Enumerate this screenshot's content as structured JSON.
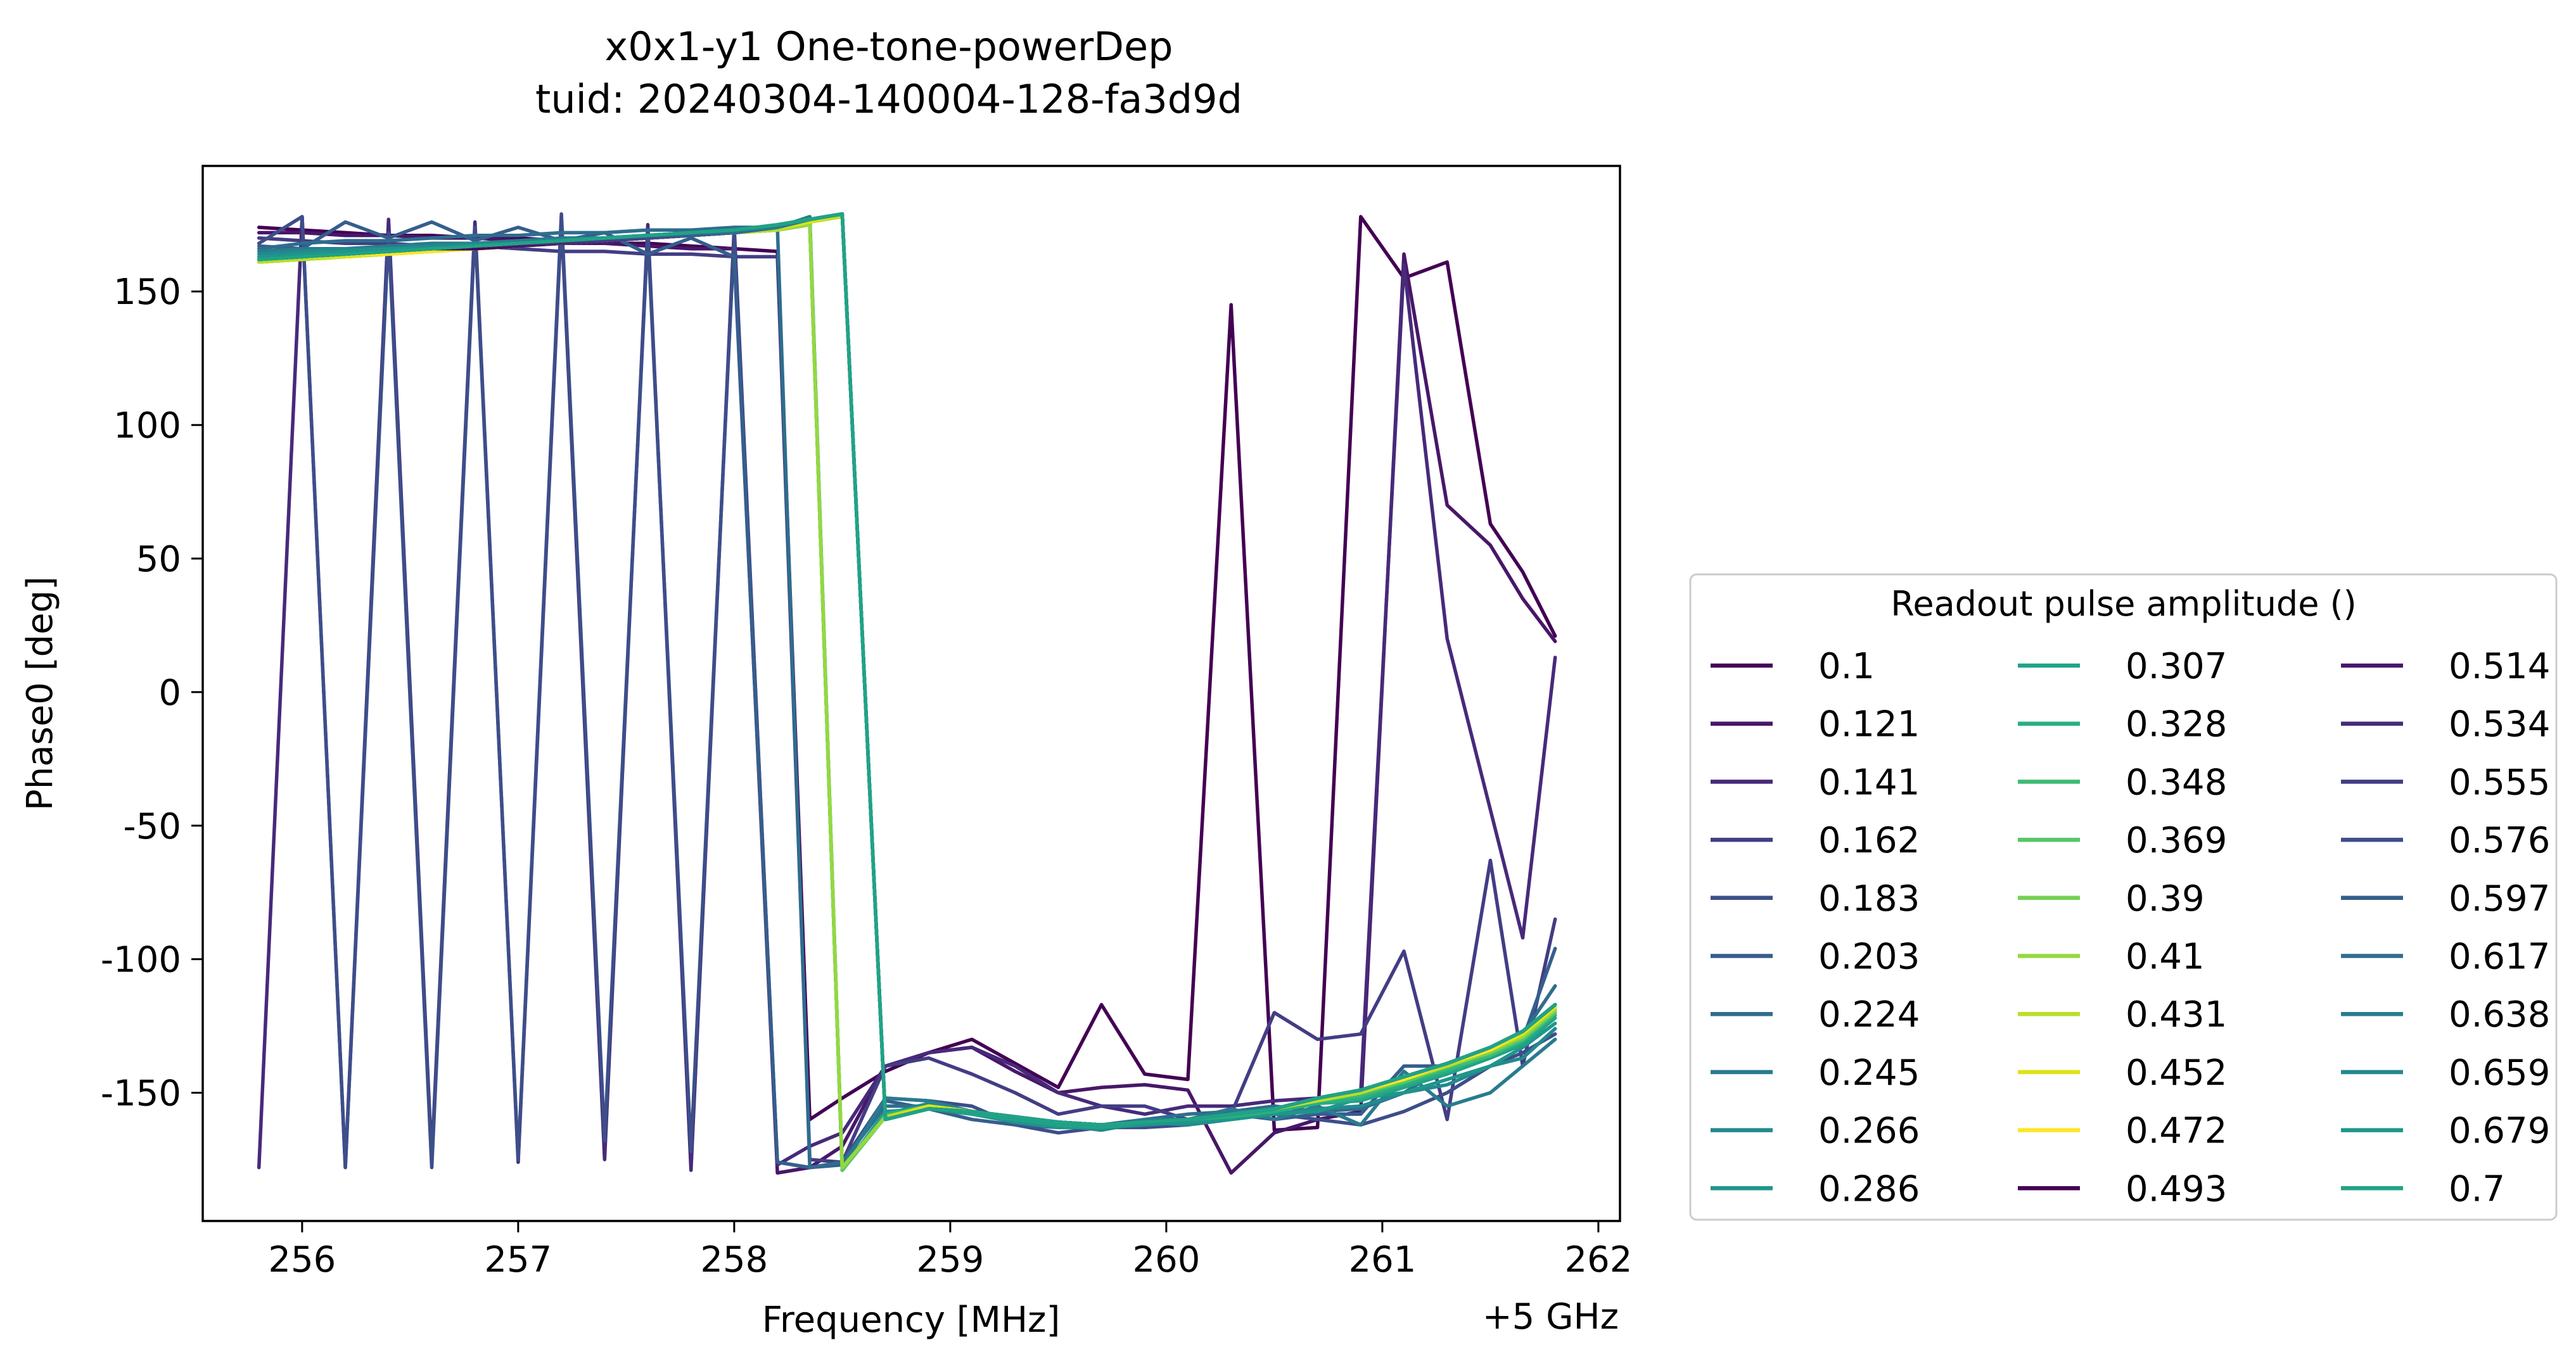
{
  "chart_data": {
    "type": "line",
    "title_line1": "x0x1-y1 One-tone-powerDep",
    "title_line2": "tuid: 20240304-140004-128-fa3d9d",
    "xlabel": "Frequency [MHz]",
    "ylabel": "Phase0 [deg]",
    "x_offset_label": "+5 GHz",
    "xlim": [
      255.54,
      262.1
    ],
    "ylim": [
      -198,
      197
    ],
    "xticks": [
      256,
      257,
      258,
      259,
      260,
      261,
      262
    ],
    "yticks": [
      150,
      100,
      50,
      0,
      -50,
      -100,
      -150
    ],
    "ytick_labels": [
      "150",
      "100",
      "50",
      "0",
      "-50",
      "-100",
      "-150"
    ],
    "grid": false,
    "legend": {
      "title": "Readout pulse amplitude ()",
      "placement": "right",
      "columns": 3
    },
    "x": [
      255.8,
      256.0,
      256.2,
      256.4,
      256.6,
      256.8,
      257.0,
      257.2,
      257.4,
      257.6,
      257.8,
      258.0,
      258.2,
      258.35,
      258.5,
      258.7,
      258.9,
      259.1,
      259.3,
      259.5,
      259.7,
      259.9,
      260.1,
      260.3,
      260.5,
      260.7,
      260.9,
      261.1,
      261.3,
      261.5,
      261.65,
      261.8
    ],
    "series": [
      {
        "name": "0.1",
        "color": "#440154",
        "values": [
          174,
          173,
          172,
          171,
          171,
          170,
          170,
          169,
          168,
          168,
          167,
          166,
          165,
          -160,
          -152,
          -142,
          -135,
          -130,
          -139,
          -148,
          -117,
          -143,
          -145,
          145,
          -164,
          -163,
          178,
          155,
          161,
          63,
          45,
          21
        ]
      },
      {
        "name": "0.121",
        "color": "#481769",
        "values": [
          172,
          172,
          171,
          171,
          170,
          170,
          169,
          168,
          168,
          167,
          166,
          166,
          -180,
          -178,
          -170,
          -140,
          -135,
          -133,
          -142,
          -150,
          -148,
          -147,
          -149,
          -180,
          -165,
          -160,
          -157,
          164,
          70,
          55,
          35,
          19
        ]
      },
      {
        "name": "0.141",
        "color": "#472a7a",
        "values": [
          -178,
          178,
          -178,
          177,
          -175,
          176,
          -176,
          177,
          -175,
          175,
          -179,
          174,
          -177,
          -170,
          -165,
          -140,
          -135,
          -133,
          -140,
          -150,
          -155,
          -158,
          -155,
          -155,
          -153,
          -152,
          -150,
          160,
          20,
          -44,
          -92,
          13
        ]
      },
      {
        "name": "0.162",
        "color": "#433d84",
        "values": [
          170,
          169,
          168,
          168,
          167,
          167,
          166,
          165,
          165,
          164,
          164,
          163,
          163,
          -175,
          -176,
          -140,
          -137,
          -143,
          -150,
          -158,
          -155,
          -155,
          -160,
          -158,
          -120,
          -130,
          -128,
          -97,
          -160,
          -63,
          -140,
          -85
        ]
      },
      {
        "name": "0.183",
        "color": "#3d4e8a",
        "values": [
          168,
          178,
          -178,
          172,
          -178,
          174,
          -175,
          179,
          -168,
          172,
          -172,
          171,
          -176,
          -178,
          -176,
          -152,
          -153,
          -155,
          -162,
          -165,
          -163,
          -163,
          -162,
          -160,
          -158,
          -160,
          -162,
          -157,
          -150,
          -140,
          -135,
          -128
        ]
      },
      {
        "name": "0.203",
        "color": "#355e8d",
        "values": [
          167,
          166,
          176,
          170,
          176,
          169,
          174,
          169,
          172,
          164,
          170,
          163,
          -176,
          -178,
          -177,
          -153,
          -156,
          -160,
          -162,
          -163,
          -163,
          -162,
          -160,
          -158,
          -160,
          -158,
          -158,
          -140,
          -140,
          -135,
          -130,
          -96
        ]
      },
      {
        "name": "0.224",
        "color": "#2e6d8e",
        "values": [
          166,
          168,
          169,
          169,
          170,
          171,
          171,
          172,
          172,
          173,
          173,
          174,
          174,
          -178,
          -176,
          -155,
          -155,
          -158,
          -160,
          -162,
          -162,
          -160,
          -158,
          -157,
          -155,
          -157,
          -156,
          -150,
          -140,
          -133,
          -128,
          -110
        ]
      },
      {
        "name": "0.245",
        "color": "#297b8e",
        "values": [
          165,
          166,
          166,
          167,
          168,
          168,
          169,
          170,
          170,
          171,
          172,
          173,
          174,
          178,
          -178,
          -152,
          -153,
          -157,
          -160,
          -162,
          -163,
          -160,
          -160,
          -156,
          -160,
          -155,
          -162,
          -142,
          -155,
          -150,
          -140,
          -130
        ]
      },
      {
        "name": "0.266",
        "color": "#23898e",
        "values": [
          164,
          165,
          166,
          166,
          167,
          168,
          168,
          169,
          170,
          171,
          172,
          173,
          174,
          176,
          -179,
          -158,
          -154,
          -157,
          -161,
          -162,
          -164,
          -161,
          -162,
          -160,
          -158,
          -156,
          -155,
          -150,
          -147,
          -140,
          -137,
          -126
        ]
      },
      {
        "name": "0.286",
        "color": "#1f968b",
        "values": [
          163,
          164,
          165,
          166,
          166,
          167,
          168,
          169,
          169,
          170,
          171,
          172,
          173,
          175,
          -179,
          -157,
          -156,
          -158,
          -161,
          -163,
          -163,
          -162,
          -161,
          -160,
          -158,
          -157,
          -152,
          -150,
          -145,
          -140,
          -133,
          -124
        ]
      },
      {
        "name": "0.307",
        "color": "#20a386",
        "values": [
          162,
          163,
          164,
          165,
          166,
          167,
          168,
          168,
          169,
          170,
          171,
          172,
          173,
          175,
          -179,
          -158,
          -155,
          -158,
          -160,
          -162,
          -163,
          -161,
          -160,
          -158,
          -157,
          -154,
          -153,
          -148,
          -143,
          -137,
          -132,
          -122
        ]
      },
      {
        "name": "0.328",
        "color": "#29af7f",
        "values": [
          162,
          163,
          164,
          165,
          166,
          167,
          167,
          168,
          169,
          170,
          171,
          172,
          173,
          175,
          -179,
          -158,
          -155,
          -157,
          -159,
          -161,
          -162,
          -161,
          -160,
          -159,
          -157,
          -154,
          -152,
          -147,
          -142,
          -136,
          -131,
          -121
        ]
      },
      {
        "name": "0.348",
        "color": "#3dbc74",
        "values": [
          161,
          162,
          163,
          164,
          165,
          166,
          167,
          168,
          169,
          170,
          171,
          172,
          173,
          175,
          -179,
          -159,
          -155,
          -157,
          -159,
          -161,
          -162,
          -161,
          -160,
          -158,
          -156,
          -153,
          -151,
          -146,
          -141,
          -136,
          -130,
          -120
        ]
      },
      {
        "name": "0.369",
        "color": "#56c667",
        "values": [
          161,
          162,
          163,
          164,
          165,
          166,
          167,
          168,
          169,
          170,
          171,
          172,
          173,
          175,
          -179,
          -159,
          -155,
          -157,
          -159,
          -161,
          -162,
          -161,
          -160,
          -158,
          -156,
          -153,
          -150,
          -146,
          -140,
          -135,
          -130,
          -120
        ]
      },
      {
        "name": "0.39",
        "color": "#75d054",
        "values": [
          161,
          162,
          163,
          164,
          165,
          166,
          167,
          168,
          169,
          170,
          171,
          172,
          173,
          175,
          -178,
          -159,
          -155,
          -157,
          -159,
          -161,
          -162,
          -161,
          -160,
          -158,
          -156,
          -153,
          -150,
          -145,
          -140,
          -135,
          -129,
          -119
        ]
      },
      {
        "name": "0.41",
        "color": "#95d840",
        "values": [
          161,
          162,
          163,
          164,
          165,
          166,
          167,
          168,
          169,
          170,
          171,
          172,
          173,
          175,
          -178,
          -159,
          -155,
          -157,
          -159,
          -161,
          -162,
          -161,
          -160,
          -158,
          -156,
          -153,
          -150,
          -145,
          -140,
          -134,
          -129,
          -119
        ]
      },
      {
        "name": "0.431",
        "color": "#bade28",
        "values": [
          161,
          162,
          163,
          164,
          165,
          166,
          167,
          168,
          169,
          170,
          171,
          172,
          173,
          176,
          178,
          -159,
          -155,
          -157,
          -159,
          -161,
          -162,
          -161,
          -160,
          -158,
          -156,
          -153,
          -150,
          -145,
          -140,
          -134,
          -128,
          -118
        ]
      },
      {
        "name": "0.452",
        "color": "#dde318",
        "values": [
          162,
          163,
          163,
          164,
          165,
          166,
          167,
          168,
          169,
          170,
          171,
          172,
          174,
          176,
          179,
          -160,
          -155,
          -157,
          -159,
          -161,
          -162,
          -161,
          -160,
          -158,
          -156,
          -152,
          -149,
          -145,
          -139,
          -134,
          -128,
          -118
        ]
      },
      {
        "name": "0.472",
        "color": "#fde725",
        "values": [
          162,
          163,
          164,
          164,
          165,
          166,
          167,
          168,
          169,
          170,
          171,
          172,
          174,
          177,
          179,
          -160,
          -156,
          -157,
          -159,
          -161,
          -162,
          -161,
          -160,
          -158,
          -156,
          -152,
          -149,
          -145,
          -139,
          -134,
          -127,
          -117
        ]
      },
      {
        "name": "0.493",
        "color": "#440154",
        "values": [
          162,
          163,
          164,
          165,
          166,
          166,
          167,
          168,
          169,
          170,
          171,
          172,
          174,
          177,
          179,
          -160,
          -156,
          -157,
          -159,
          -161,
          -162,
          -161,
          -160,
          -158,
          -156,
          -152,
          -149,
          -144,
          -139,
          -133,
          -127,
          -117
        ]
      },
      {
        "name": "0.514",
        "color": "#481769",
        "values": [
          162,
          163,
          164,
          165,
          166,
          167,
          167,
          168,
          169,
          170,
          171,
          172,
          174,
          177,
          179,
          -160,
          -156,
          -157,
          -159,
          -161,
          -162,
          -161,
          -160,
          -158,
          -156,
          -152,
          -149,
          -144,
          -139,
          -133,
          -127,
          -117
        ]
      },
      {
        "name": "0.534",
        "color": "#472a7a",
        "values": [
          162,
          163,
          164,
          165,
          166,
          167,
          168,
          168,
          169,
          170,
          171,
          172,
          174,
          177,
          179,
          -160,
          -156,
          -157,
          -159,
          -161,
          -162,
          -161,
          -160,
          -158,
          -156,
          -152,
          -149,
          -144,
          -139,
          -133,
          -127,
          -117
        ]
      },
      {
        "name": "0.555",
        "color": "#433d84",
        "values": [
          162,
          163,
          164,
          165,
          166,
          167,
          168,
          169,
          169,
          170,
          171,
          172,
          174,
          177,
          179,
          -160,
          -156,
          -157,
          -159,
          -161,
          -162,
          -161,
          -160,
          -158,
          -156,
          -152,
          -149,
          -144,
          -139,
          -133,
          -127,
          -117
        ]
      },
      {
        "name": "0.576",
        "color": "#3d4e8a",
        "values": [
          162,
          163,
          164,
          165,
          166,
          167,
          168,
          169,
          170,
          170,
          171,
          172,
          174,
          177,
          179,
          -160,
          -156,
          -157,
          -159,
          -161,
          -162,
          -161,
          -160,
          -158,
          -156,
          -152,
          -149,
          -144,
          -139,
          -133,
          -127,
          -117
        ]
      },
      {
        "name": "0.597",
        "color": "#355e8d",
        "values": [
          162,
          163,
          164,
          165,
          166,
          167,
          168,
          169,
          170,
          171,
          171,
          172,
          174,
          177,
          179,
          -160,
          -156,
          -157,
          -159,
          -161,
          -162,
          -161,
          -160,
          -158,
          -156,
          -152,
          -149,
          -144,
          -139,
          -133,
          -127,
          -117
        ]
      },
      {
        "name": "0.617",
        "color": "#2e6d8e",
        "values": [
          162,
          163,
          164,
          165,
          166,
          167,
          168,
          169,
          170,
          171,
          172,
          172,
          174,
          177,
          179,
          -160,
          -156,
          -157,
          -159,
          -161,
          -162,
          -161,
          -160,
          -158,
          -156,
          -152,
          -149,
          -144,
          -139,
          -133,
          -127,
          -117
        ]
      },
      {
        "name": "0.638",
        "color": "#297b8e",
        "values": [
          162,
          163,
          164,
          165,
          166,
          167,
          168,
          169,
          170,
          171,
          172,
          173,
          174,
          177,
          179,
          -160,
          -156,
          -157,
          -159,
          -161,
          -162,
          -161,
          -160,
          -158,
          -156,
          -152,
          -149,
          -144,
          -139,
          -133,
          -127,
          -117
        ]
      },
      {
        "name": "0.659",
        "color": "#23898e",
        "values": [
          162,
          163,
          164,
          165,
          166,
          167,
          168,
          169,
          170,
          171,
          172,
          173,
          175,
          177,
          179,
          -160,
          -156,
          -157,
          -159,
          -161,
          -162,
          -161,
          -160,
          -158,
          -156,
          -152,
          -149,
          -144,
          -139,
          -133,
          -127,
          -117
        ]
      },
      {
        "name": "0.679",
        "color": "#1f968b",
        "values": [
          162,
          163,
          164,
          165,
          166,
          167,
          168,
          169,
          170,
          171,
          172,
          173,
          175,
          177,
          179,
          -160,
          -156,
          -157,
          -159,
          -161,
          -162,
          -161,
          -160,
          -158,
          -156,
          -152,
          -149,
          -144,
          -139,
          -133,
          -127,
          -117
        ]
      },
      {
        "name": "0.7",
        "color": "#20a386",
        "values": [
          162,
          163,
          164,
          165,
          166,
          167,
          168,
          169,
          170,
          171,
          172,
          173,
          175,
          177,
          179,
          -160,
          -156,
          -157,
          -159,
          -161,
          -162,
          -161,
          -160,
          -158,
          -156,
          -152,
          -149,
          -144,
          -139,
          -133,
          -127,
          -117
        ]
      }
    ]
  }
}
